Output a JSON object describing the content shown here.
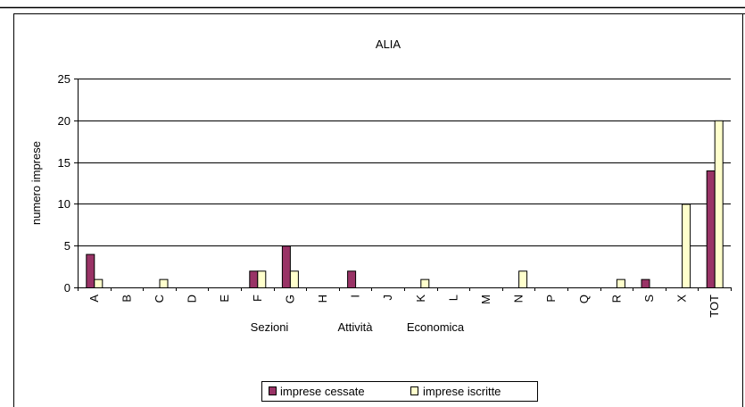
{
  "chart_data": {
    "type": "bar",
    "title": "ALIA",
    "ylabel": "numero imprese",
    "xlabel_parts": [
      "Sezioni",
      "Attività",
      "Economica"
    ],
    "ylim": [
      0,
      25
    ],
    "yticks": [
      0,
      5,
      10,
      15,
      20,
      25
    ],
    "grid": true,
    "legend_position": "bottom",
    "categories": [
      "A",
      "B",
      "C",
      "D",
      "E",
      "F",
      "G",
      "H",
      "I",
      "J",
      "K",
      "L",
      "M",
      "N",
      "P",
      "Q",
      "R",
      "S",
      "X",
      "TOT"
    ],
    "series": [
      {
        "name": "imprese cessate",
        "color": "#993366",
        "values": [
          4,
          0,
          0,
          0,
          0,
          2,
          5,
          0,
          2,
          0,
          0,
          0,
          0,
          0,
          0,
          0,
          0,
          1,
          0,
          14
        ]
      },
      {
        "name": "imprese iscritte",
        "color": "#FFFFCC",
        "values": [
          1,
          0,
          1,
          0,
          0,
          2,
          2,
          0,
          0,
          0,
          1,
          0,
          0,
          2,
          0,
          0,
          1,
          0,
          10,
          20
        ]
      }
    ]
  }
}
